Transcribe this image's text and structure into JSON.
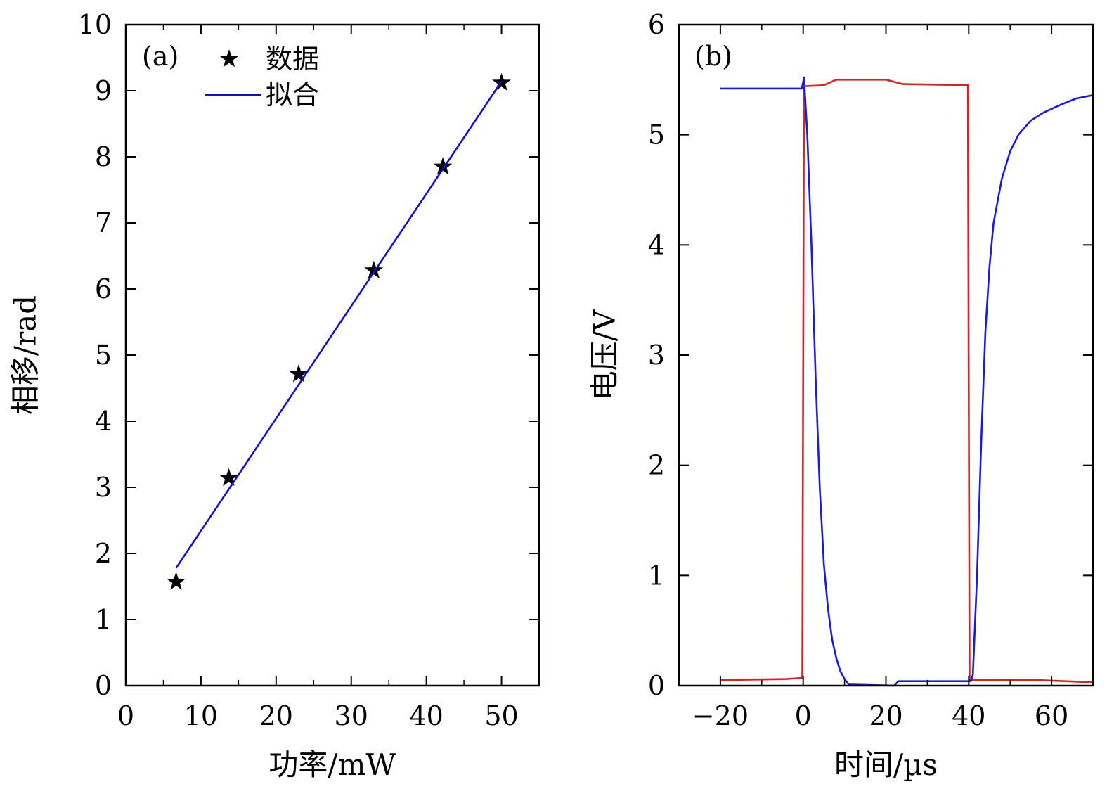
{
  "chart_data": [
    {
      "type": "scatter",
      "panel_label": "(a)",
      "xlabel": "功率/mW",
      "ylabel": "相移/rad",
      "xlim": [
        0,
        55
      ],
      "ylim": [
        0,
        10
      ],
      "xticks": [
        0,
        10,
        20,
        30,
        40,
        50
      ],
      "yticks": [
        0,
        1,
        2,
        3,
        4,
        5,
        6,
        7,
        8,
        9,
        10
      ],
      "grid": false,
      "legend_position": "top-left",
      "series": [
        {
          "name": "数据",
          "kind": "marker",
          "marker": "star",
          "color": "#000000",
          "points": [
            [
              6.7,
              1.57
            ],
            [
              13.7,
              3.14
            ],
            [
              23.0,
              4.71
            ],
            [
              33.0,
              6.28
            ],
            [
              42.2,
              7.85
            ],
            [
              50.0,
              9.12
            ]
          ]
        },
        {
          "name": "拟合",
          "kind": "line",
          "color": "#1010d0",
          "points": [
            [
              6.7,
              1.78
            ],
            [
              50.0,
              9.14
            ]
          ]
        }
      ]
    },
    {
      "type": "line",
      "panel_label": "(b)",
      "xlabel": "时间/µs",
      "ylabel": "电压/V",
      "xlim": [
        -30,
        70
      ],
      "ylim": [
        0,
        6
      ],
      "xticks": [
        -20,
        0,
        20,
        40,
        60
      ],
      "xtick_labels": [
        "−20",
        "0",
        "20",
        "40",
        "60"
      ],
      "yticks": [
        0,
        1,
        2,
        3,
        4,
        5,
        6
      ],
      "grid": false,
      "series": [
        {
          "color": "#e0201e",
          "points": [
            [
              -20,
              0.05
            ],
            [
              -4,
              0.06
            ],
            [
              -0.2,
              0.07
            ],
            [
              0.2,
              5.44
            ],
            [
              5,
              5.45
            ],
            [
              8,
              5.5
            ],
            [
              20,
              5.5
            ],
            [
              24,
              5.46
            ],
            [
              39.8,
              5.45
            ],
            [
              40.2,
              0.05
            ],
            [
              57,
              0.05
            ],
            [
              70,
              0.03
            ]
          ]
        },
        {
          "color": "#1a1ae0",
          "points": [
            [
              -20,
              5.42
            ],
            [
              -0.3,
              5.42
            ],
            [
              0.2,
              5.52
            ],
            [
              1,
              5.0
            ],
            [
              2,
              4.0
            ],
            [
              3,
              2.8
            ],
            [
              4,
              1.8
            ],
            [
              5,
              1.1
            ],
            [
              6,
              0.7
            ],
            [
              7,
              0.42
            ],
            [
              8,
              0.25
            ],
            [
              9,
              0.13
            ],
            [
              10,
              0.06
            ],
            [
              11,
              0.01
            ],
            [
              22,
              0.0
            ],
            [
              23,
              0.04
            ],
            [
              40.5,
              0.04
            ],
            [
              41,
              0.1
            ],
            [
              42,
              1.0
            ],
            [
              43,
              2.2
            ],
            [
              44,
              3.2
            ],
            [
              45,
              3.8
            ],
            [
              46,
              4.2
            ],
            [
              48,
              4.6
            ],
            [
              50,
              4.85
            ],
            [
              52,
              5.0
            ],
            [
              55,
              5.13
            ],
            [
              58,
              5.2
            ],
            [
              62,
              5.27
            ],
            [
              66,
              5.33
            ],
            [
              70,
              5.36
            ]
          ]
        }
      ]
    }
  ]
}
